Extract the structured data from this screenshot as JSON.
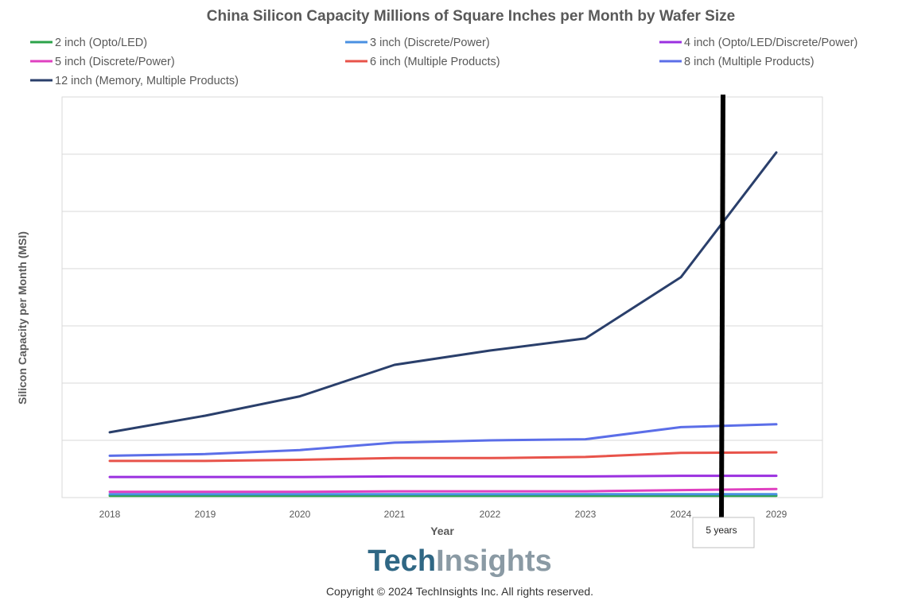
{
  "chart_data": {
    "type": "line",
    "title": "China Silicon Capacity Millions of Square Inches per Month by Wafer Size",
    "xlabel": "Year",
    "ylabel": "Silicon Capacity per Month (MSI)",
    "categories": [
      "2018",
      "2019",
      "2020",
      "2021",
      "2022",
      "2023",
      "2024",
      "2029"
    ],
    "ylim": [
      0,
      700
    ],
    "y_gridlines": [
      100,
      200,
      300,
      400,
      500,
      600,
      700
    ],
    "y_tick_labels_visible": false,
    "legend_position": "top",
    "series": [
      {
        "name": "2 inch (Opto/LED)",
        "color": "#2ca34a",
        "values": [
          3,
          3,
          3,
          3,
          3,
          3,
          3,
          3
        ]
      },
      {
        "name": "3 inch (Discrete/Power)",
        "color": "#4a90e2",
        "values": [
          6,
          6,
          6,
          6,
          6,
          6,
          6,
          6
        ]
      },
      {
        "name": "4 inch (Opto/LED/Discrete/Power)",
        "color": "#9b30e0",
        "values": [
          36,
          36,
          36,
          37,
          37,
          37,
          38,
          38
        ]
      },
      {
        "name": "5 inch (Discrete/Power)",
        "color": "#e040c0",
        "values": [
          10,
          10,
          10,
          11,
          11,
          11,
          13,
          15
        ]
      },
      {
        "name": "6 inch (Multiple Products)",
        "color": "#e8534a",
        "values": [
          64,
          64,
          66,
          69,
          69,
          71,
          78,
          79
        ]
      },
      {
        "name": "8 inch (Multiple Products)",
        "color": "#5b6ee8",
        "values": [
          73,
          76,
          83,
          96,
          100,
          102,
          123,
          128
        ]
      },
      {
        "name": "12 inch (Memory, Multiple Products)",
        "color": "#2a3f6b",
        "values": [
          114,
          143,
          177,
          232,
          257,
          278,
          385,
          603
        ]
      }
    ],
    "annotations": [
      {
        "type": "vertical-line",
        "between": [
          "2024",
          "2029"
        ],
        "label": "5 years"
      }
    ]
  },
  "branding": {
    "logo_part1": "Tech",
    "logo_part2": "Insights",
    "copyright": "Copyright © 2024 TechInsights Inc.  All rights reserved."
  }
}
